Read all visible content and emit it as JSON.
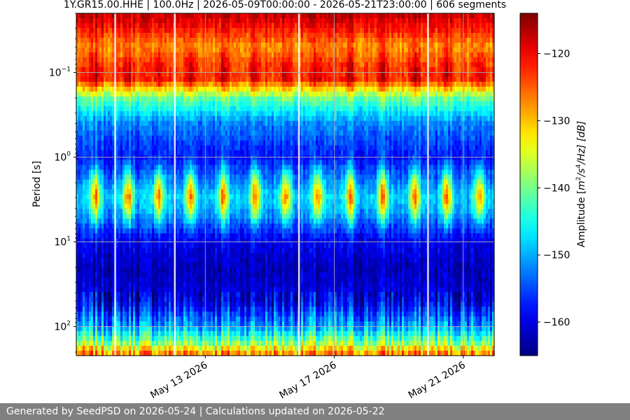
{
  "chart_data": {
    "type": "heatmap",
    "title": "1Y.GR15.00.HHE | 100.0Hz | 2026-05-09T00:00:00 - 2026-05-21T23:00:00 | 606 segments",
    "ylabel": "Period [s]",
    "colorbar_label": "Amplitude [m²/s⁴/Hz] [dB]",
    "colorbar_label_parts": {
      "pre": "Amplitude [",
      "m": "m",
      "sup2": "2",
      "mid": "/s",
      "sup4": "4",
      "post": "/Hz] [dB]"
    },
    "y_scale": "log",
    "y_inverted": true,
    "x_range": [
      "2026-05-09T00:00:00",
      "2026-05-21T23:00:00"
    ],
    "y_range": [
      0.02,
      220
    ],
    "x_ticks": [
      {
        "date": "2026-05-13",
        "label": "May 13 2026"
      },
      {
        "date": "2026-05-17",
        "label": "May 17 2026"
      },
      {
        "date": "2026-05-21",
        "label": "May 21 2026"
      }
    ],
    "y_ticks": [
      {
        "value": 0.1,
        "base": "10",
        "exp": "−1"
      },
      {
        "value": 1,
        "base": "10",
        "exp": "0"
      },
      {
        "value": 10,
        "base": "10",
        "exp": "1"
      },
      {
        "value": 100,
        "base": "10",
        "exp": "2"
      }
    ],
    "colorbar": {
      "colormap": "jet",
      "range": [
        -165,
        -114
      ],
      "ticks": [
        {
          "value": -120,
          "label": "−120"
        },
        {
          "value": -130,
          "label": "−130"
        },
        {
          "value": -140,
          "label": "−140"
        },
        {
          "value": -150,
          "label": "−150"
        },
        {
          "value": -160,
          "label": "−160"
        }
      ]
    },
    "day_peak_days": [
      9.6,
      10.6,
      11.55,
      12.55,
      13.55,
      14.55,
      15.5,
      16.5,
      17.5,
      18.5,
      19.5,
      20.5,
      21.5
    ],
    "profile": [
      {
        "period": 0.02,
        "db": -117
      },
      {
        "period": 0.03,
        "db": -121
      },
      {
        "period": 0.05,
        "db": -128
      },
      {
        "period": 0.08,
        "db": -124
      },
      {
        "period": 0.12,
        "db": -123
      },
      {
        "period": 0.2,
        "db": -141
      },
      {
        "period": 0.4,
        "db": -152
      },
      {
        "period": 1,
        "db": -158
      },
      {
        "period": 2,
        "db": -152
      },
      {
        "period": 3,
        "db": -148
      },
      {
        "period": 5,
        "db": -152
      },
      {
        "period": 9,
        "db": -159
      },
      {
        "period": 20,
        "db": -162
      },
      {
        "period": 50,
        "db": -160
      },
      {
        "period": 100,
        "db": -150
      },
      {
        "period": 150,
        "db": -140
      },
      {
        "period": 220,
        "db": -125
      }
    ],
    "gap_days": [
      10.2,
      12.05,
      15.9,
      19.9
    ],
    "grid": true
  },
  "footer": {
    "text": "Generated by SeedPSD on 2026-05-24 | Calculations updated on 2026-05-22"
  }
}
